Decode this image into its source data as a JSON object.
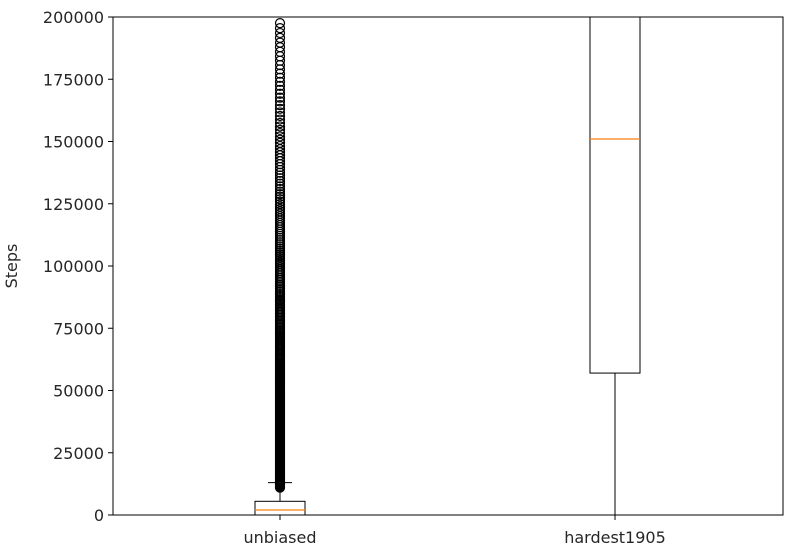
{
  "chart_data": {
    "type": "boxplot",
    "title": "",
    "xlabel": "",
    "ylabel": "Steps",
    "ylim": [
      0,
      200000
    ],
    "yticks": [
      0,
      25000,
      50000,
      75000,
      100000,
      125000,
      150000,
      175000,
      200000
    ],
    "grid": false,
    "categories": [
      "unbiased",
      "hardest1905"
    ],
    "boxes": [
      {
        "name": "unbiased",
        "whisker_low": 0,
        "q1": 0,
        "median": 2000,
        "q3": 5500,
        "whisker_high": 13000,
        "outliers_range": [
          11000,
          198000
        ]
      },
      {
        "name": "hardest1905",
        "whisker_low": 0,
        "q1": 57000,
        "median": 151000,
        "q3": 200000,
        "whisker_high": 200000,
        "outliers_range": null
      }
    ],
    "colors": {
      "box": "#000000",
      "median": "#ff7f0e",
      "axis": "#000000",
      "outlier": "#000000"
    }
  }
}
